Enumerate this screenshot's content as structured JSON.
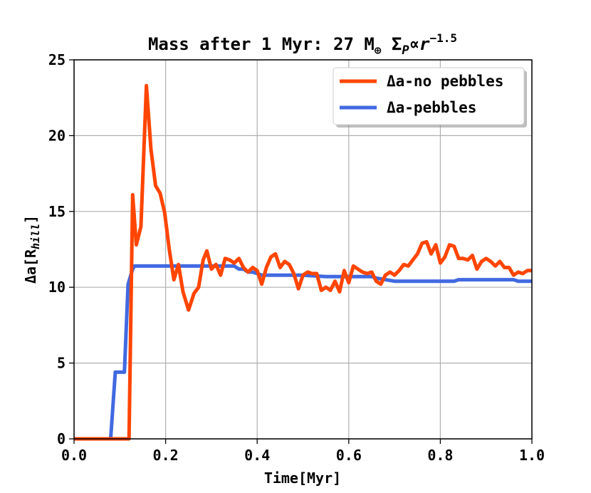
{
  "chart_data": {
    "type": "line",
    "title": {
      "main": "Mass after 1 Myr: 27 M",
      "earth_symbol": "⊕",
      "sigma": "Σ",
      "sigma_sub": "P",
      "prop": "∝",
      "r": "r",
      "exponent": "−1.5"
    },
    "xlabel": "Time[Myr]",
    "ylabel": {
      "main": "Δa[R",
      "sub": "hill",
      "close": "]"
    },
    "xlim": [
      0.0,
      1.0
    ],
    "ylim": [
      0,
      25
    ],
    "x_ticks": [
      0.0,
      0.2,
      0.4,
      0.6,
      0.8,
      1.0
    ],
    "x_tick_labels": [
      "0.0",
      "0.2",
      "0.4",
      "0.6",
      "0.8",
      "1.0"
    ],
    "y_ticks": [
      0,
      5,
      10,
      15,
      20,
      25
    ],
    "y_tick_labels": [
      "0",
      "5",
      "10",
      "15",
      "20",
      "25"
    ],
    "grid": true,
    "legend_placement": "top-right",
    "series": [
      {
        "name": "Δa-no pebbles",
        "color": "#ff4500",
        "points": [
          [
            0.0,
            0
          ],
          [
            0.118,
            0
          ],
          [
            0.12,
            0
          ],
          [
            0.128,
            16.1
          ],
          [
            0.136,
            12.8
          ],
          [
            0.146,
            14.0
          ],
          [
            0.158,
            23.3
          ],
          [
            0.168,
            19.1
          ],
          [
            0.178,
            16.7
          ],
          [
            0.188,
            16.2
          ],
          [
            0.198,
            14.9
          ],
          [
            0.208,
            12.5
          ],
          [
            0.218,
            10.5
          ],
          [
            0.228,
            11.5
          ],
          [
            0.238,
            9.7
          ],
          [
            0.25,
            8.5
          ],
          [
            0.262,
            9.6
          ],
          [
            0.272,
            10.0
          ],
          [
            0.282,
            11.8
          ],
          [
            0.29,
            12.4
          ],
          [
            0.3,
            11.2
          ],
          [
            0.31,
            11.5
          ],
          [
            0.32,
            10.8
          ],
          [
            0.33,
            11.9
          ],
          [
            0.34,
            11.8
          ],
          [
            0.35,
            11.6
          ],
          [
            0.36,
            11.9
          ],
          [
            0.37,
            11.3
          ],
          [
            0.38,
            11.0
          ],
          [
            0.39,
            11.3
          ],
          [
            0.4,
            11.1
          ],
          [
            0.41,
            10.2
          ],
          [
            0.42,
            11.3
          ],
          [
            0.43,
            12.0
          ],
          [
            0.44,
            12.2
          ],
          [
            0.45,
            11.3
          ],
          [
            0.46,
            11.7
          ],
          [
            0.47,
            11.5
          ],
          [
            0.48,
            10.9
          ],
          [
            0.49,
            9.9
          ],
          [
            0.5,
            10.8
          ],
          [
            0.51,
            11.0
          ],
          [
            0.52,
            10.9
          ],
          [
            0.53,
            10.9
          ],
          [
            0.54,
            9.8
          ],
          [
            0.55,
            10.0
          ],
          [
            0.56,
            9.8
          ],
          [
            0.57,
            10.4
          ],
          [
            0.58,
            9.7
          ],
          [
            0.59,
            11.1
          ],
          [
            0.6,
            10.3
          ],
          [
            0.61,
            11.4
          ],
          [
            0.62,
            11.2
          ],
          [
            0.63,
            11.0
          ],
          [
            0.64,
            10.9
          ],
          [
            0.65,
            11.0
          ],
          [
            0.66,
            10.4
          ],
          [
            0.67,
            10.2
          ],
          [
            0.68,
            10.8
          ],
          [
            0.69,
            11.0
          ],
          [
            0.7,
            10.8
          ],
          [
            0.71,
            11.1
          ],
          [
            0.72,
            11.5
          ],
          [
            0.73,
            11.4
          ],
          [
            0.74,
            11.8
          ],
          [
            0.75,
            12.2
          ],
          [
            0.76,
            12.9
          ],
          [
            0.77,
            13.0
          ],
          [
            0.78,
            12.2
          ],
          [
            0.79,
            12.8
          ],
          [
            0.8,
            11.6
          ],
          [
            0.81,
            12.0
          ],
          [
            0.82,
            12.8
          ],
          [
            0.83,
            12.7
          ],
          [
            0.84,
            11.9
          ],
          [
            0.85,
            11.9
          ],
          [
            0.86,
            11.8
          ],
          [
            0.87,
            12.1
          ],
          [
            0.88,
            11.2
          ],
          [
            0.89,
            11.7
          ],
          [
            0.9,
            11.9
          ],
          [
            0.91,
            11.7
          ],
          [
            0.92,
            11.4
          ],
          [
            0.93,
            11.7
          ],
          [
            0.94,
            11.3
          ],
          [
            0.95,
            11.3
          ],
          [
            0.96,
            10.8
          ],
          [
            0.97,
            11.0
          ],
          [
            0.98,
            10.9
          ],
          [
            0.99,
            11.1
          ],
          [
            1.0,
            11.1
          ]
        ]
      },
      {
        "name": "Δa-pebbles",
        "color": "#4169e1",
        "points": [
          [
            0.0,
            0
          ],
          [
            0.08,
            0
          ],
          [
            0.09,
            4.4
          ],
          [
            0.1,
            4.4
          ],
          [
            0.11,
            4.4
          ],
          [
            0.118,
            10.2
          ],
          [
            0.128,
            11.2
          ],
          [
            0.132,
            11.4
          ],
          [
            0.14,
            11.4
          ],
          [
            0.2,
            11.4
          ],
          [
            0.3,
            11.4
          ],
          [
            0.35,
            11.4
          ],
          [
            0.36,
            11.2
          ],
          [
            0.37,
            11.2
          ],
          [
            0.38,
            11.0
          ],
          [
            0.39,
            11.0
          ],
          [
            0.4,
            10.9
          ],
          [
            0.41,
            10.8
          ],
          [
            0.5,
            10.8
          ],
          [
            0.55,
            10.7
          ],
          [
            0.6,
            10.7
          ],
          [
            0.65,
            10.7
          ],
          [
            0.66,
            10.6
          ],
          [
            0.7,
            10.4
          ],
          [
            0.75,
            10.4
          ],
          [
            0.8,
            10.4
          ],
          [
            0.83,
            10.4
          ],
          [
            0.84,
            10.5
          ],
          [
            0.9,
            10.5
          ],
          [
            0.96,
            10.5
          ],
          [
            0.97,
            10.4
          ],
          [
            1.0,
            10.4
          ]
        ]
      }
    ]
  }
}
